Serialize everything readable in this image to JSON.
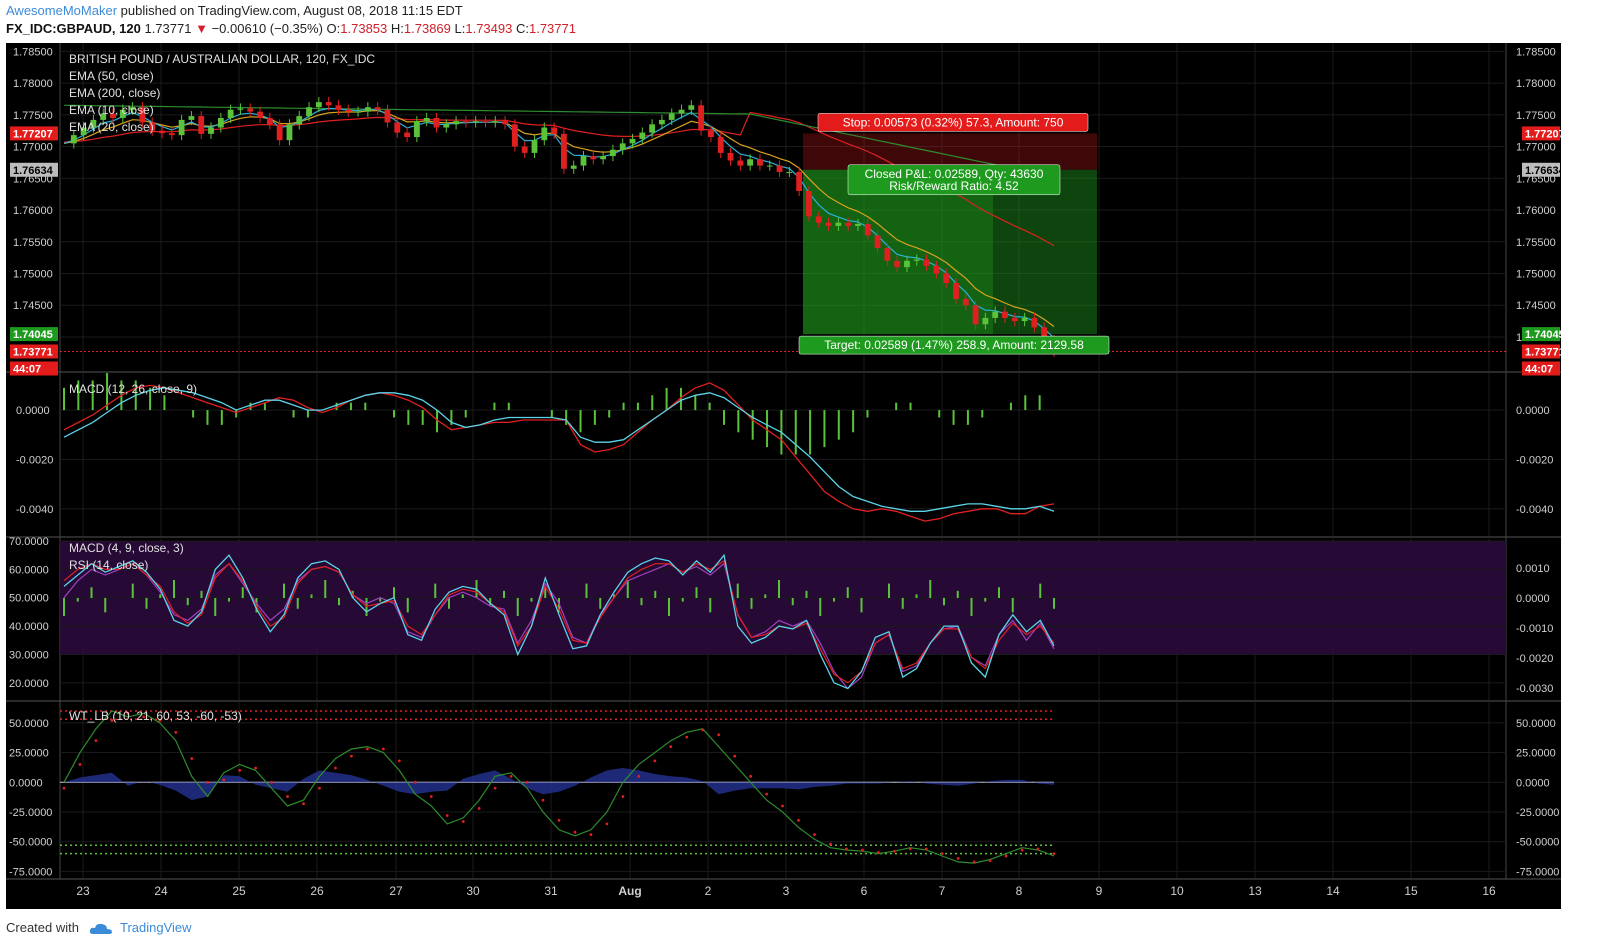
{
  "header": {
    "author": "AwesomeMoMaker",
    "published_text": "published on TradingView.com, August 08, 2018 11:15 EDT",
    "symbol": "FX_IDC:GBPAUD, 120",
    "last": "1.73771",
    "arrow": "▼",
    "change": "−0.00610 (−0.35%)",
    "open_label": "O:",
    "open": "1.73853",
    "high_label": "H:",
    "high": "1.73869",
    "low_label": "L:",
    "low": "1.73493",
    "close_label": "C:",
    "close": "1.73771"
  },
  "footer": {
    "created_with": "Created with",
    "brand": "TradingView"
  },
  "colors": {
    "up": "#5ac33a",
    "down": "#e02020",
    "bg": "#000000",
    "grid": "#1a1a1a",
    "ema10": "#2ab0d8",
    "ema20": "#d9a21e",
    "ema50": "#2e8b2e",
    "ema200": "#e02020",
    "macd": "#5bd3e8",
    "signal": "#e02020",
    "rsi": "#a040c0",
    "target": "#1e9a1e",
    "stop": "#e31b1b"
  },
  "chart_data": [
    {
      "type": "candlestick",
      "title": "BRITISH POUND / AUSTRALIAN DOLLAR, 120, FX_IDC",
      "legend": [
        "EMA (50, close)",
        "EMA (200, close)",
        "EMA (10, close)",
        "EMA (20, close)"
      ],
      "ylim": [
        1.737,
        1.786
      ],
      "yticks": [
        1.785,
        1.78,
        1.775,
        1.77,
        1.765,
        1.76,
        1.755,
        1.75,
        1.745,
        1.74
      ],
      "ytick_labels": [
        "1.78500",
        "1.78000",
        "1.77500",
        "1.77000",
        "1.76500",
        "1.76000",
        "1.75500",
        "1.75000",
        "1.74500",
        "1.74000"
      ],
      "x_categories": [
        "23",
        "24",
        "25",
        "26",
        "27",
        "30",
        "31",
        "Aug",
        "2",
        "3",
        "6",
        "7",
        "8",
        "9",
        "10",
        "13",
        "14",
        "15",
        "16"
      ],
      "closes": [
        1.7705,
        1.7718,
        1.773,
        1.7742,
        1.7752,
        1.7745,
        1.7758,
        1.7762,
        1.7738,
        1.7725,
        1.7721,
        1.7718,
        1.7742,
        1.7748,
        1.772,
        1.773,
        1.7745,
        1.7758,
        1.776,
        1.7755,
        1.7745,
        1.7735,
        1.771,
        1.7735,
        1.7748,
        1.7762,
        1.777,
        1.7765,
        1.7758,
        1.7755,
        1.7755,
        1.7762,
        1.7758,
        1.7738,
        1.7722,
        1.7715,
        1.774,
        1.7745,
        1.773,
        1.7735,
        1.774,
        1.7738,
        1.774,
        1.7738,
        1.774,
        1.7735,
        1.77,
        1.769,
        1.771,
        1.773,
        1.772,
        1.7665,
        1.767,
        1.7685,
        1.768,
        1.7685,
        1.7695,
        1.7705,
        1.7712,
        1.7722,
        1.7735,
        1.7742,
        1.7752,
        1.7758,
        1.7765,
        1.7725,
        1.7715,
        1.769,
        1.7678,
        1.767,
        1.768,
        1.767,
        1.767,
        1.766,
        1.766,
        1.763,
        1.759,
        1.758,
        1.7575,
        1.758,
        1.7575,
        1.7578,
        1.756,
        1.754,
        1.752,
        1.751,
        1.752,
        1.7522,
        1.7512,
        1.75,
        1.7485,
        1.746,
        1.745,
        1.742,
        1.743,
        1.744,
        1.743,
        1.7425,
        1.743,
        1.7415,
        1.7395,
        1.7377
      ],
      "last_price": 1.73771,
      "ema10_last": 1.74,
      "ema20_last": 1.7432,
      "ema200_last": 1.7515,
      "position": {
        "type": "short",
        "entry": 1.76634,
        "stop_price": 1.77207,
        "target_price": 1.74045,
        "stop_label": "Stop: 0.00573 (0.32%) 57.3, Amount: 750",
        "target_label": "Target: 0.02589 (1.47%) 258.9, Amount: 2129.58",
        "pnl_label": "Closed P&L: 0.02589, Qty: 43630",
        "rr_label": "Risk/Reward Ratio: 4.52"
      },
      "price_tags": {
        "stop": "1.77207",
        "entry": "1.76634",
        "target": "1.74045",
        "last": "1.73771",
        "countdown": "44:07"
      }
    },
    {
      "type": "line",
      "title": "MACD (12, 26, close, 9)",
      "ylim": [
        -0.0049,
        0.0013
      ],
      "yticks": [
        0.0,
        -0.002,
        -0.004
      ],
      "ytick_labels": [
        "0.0000",
        "-0.0020",
        "-0.0040"
      ],
      "macd": [
        -0.0011,
        -0.0008,
        -0.0005,
        -0.0001,
        0.0003,
        0.0006,
        0.0008,
        0.0009,
        0.0008,
        0.0007,
        0.0005,
        0.0003,
        0.0,
        0.0002,
        0.0004,
        0.0004,
        0.0002,
        0.0,
        0.0,
        0.0002,
        0.0004,
        0.0006,
        0.0007,
        0.0007,
        0.0006,
        0.0004,
        0.0,
        -0.0005,
        -0.0007,
        -0.0006,
        -0.0004,
        -0.0003,
        -0.0003,
        -0.0003,
        -0.0003,
        -0.0004,
        -0.0011,
        -0.0013,
        -0.0013,
        -0.0012,
        -0.0008,
        -0.0004,
        0.0,
        0.0004,
        0.0006,
        0.0007,
        0.0005,
        0.0001,
        -0.0003,
        -0.0006,
        -0.0009,
        -0.0014,
        -0.0019,
        -0.0025,
        -0.0031,
        -0.0035,
        -0.0037,
        -0.0039,
        -0.004,
        -0.0041,
        -0.0041,
        -0.004,
        -0.0039,
        -0.0038,
        -0.0038,
        -0.0039,
        -0.004,
        -0.004,
        -0.0039,
        -0.0041
      ],
      "signal": [
        -0.0008,
        -0.0005,
        -0.0002,
        0.0002,
        0.0006,
        0.0009,
        0.001,
        0.0009,
        0.0007,
        0.0005,
        0.0003,
        0.0001,
        -0.0001,
        0.0001,
        0.0003,
        0.0005,
        0.0004,
        0.0001,
        -0.0001,
        0.0001,
        0.0004,
        0.0006,
        0.0007,
        0.0006,
        0.0004,
        0.0001,
        -0.0004,
        -0.0008,
        -0.0007,
        -0.0006,
        -0.0005,
        -0.0005,
        -0.0004,
        -0.0004,
        -0.0004,
        -0.0004,
        -0.0014,
        -0.0017,
        -0.0016,
        -0.0014,
        -0.0009,
        -0.0004,
        0.0,
        0.0005,
        0.0009,
        0.0011,
        0.0008,
        0.0002,
        -0.0004,
        -0.0008,
        -0.0012,
        -0.0019,
        -0.0026,
        -0.0033,
        -0.0037,
        -0.004,
        -0.0041,
        -0.004,
        -0.0041,
        -0.0043,
        -0.0045,
        -0.0044,
        -0.0042,
        -0.0041,
        -0.004,
        -0.004,
        -0.0042,
        -0.0042,
        -0.0039,
        -0.0038
      ],
      "histogram": [
        0.0003,
        0.0004,
        0.0004,
        0.0005,
        0.0004,
        0.0004,
        0.0003,
        0.0002,
        0.0,
        -0.0001,
        -0.0002,
        -0.0002,
        -0.0001,
        0.0001,
        0.0001,
        0.0,
        -0.0001,
        -0.0001,
        0.0,
        0.0001,
        0.0001,
        0.0001,
        0.0,
        -0.0001,
        -0.0002,
        -0.0002,
        -0.0003,
        -0.0002,
        -0.0001,
        0.0,
        0.0001,
        0.0001,
        0.0,
        0.0,
        -0.0001,
        -0.0002,
        -0.0003,
        -0.0002,
        -0.0001,
        0.0001,
        0.0001,
        0.0002,
        0.0003,
        0.0003,
        0.0002,
        0.0001,
        -0.0002,
        -0.0003,
        -0.0004,
        -0.0005,
        -0.0006,
        -0.0006,
        -0.0006,
        -0.0005,
        -0.0004,
        -0.0003,
        -0.0001,
        0.0,
        0.0001,
        0.0001,
        0.0,
        -0.0001,
        -0.0002,
        -0.0002,
        -0.0001,
        0.0,
        0.0001,
        0.0002,
        0.0002,
        0.0
      ]
    },
    {
      "type": "line",
      "title": "MACD (4, 9, close, 3)",
      "legend2": "RSI (14, close)",
      "ylim_left": [
        15,
        70
      ],
      "yticks_left": [
        70,
        60,
        50,
        40,
        30,
        20
      ],
      "ytick_labels_left": [
        "70.0000",
        "60.0000",
        "50.0000",
        "40.0000",
        "30.0000",
        "20.0000"
      ],
      "ylim_right": [
        -0.0033,
        0.0019
      ],
      "yticks_right": [
        0.001,
        0.0,
        -0.001,
        -0.002,
        -0.003
      ],
      "ytick_labels_right": [
        "0.0010",
        "0.0000",
        "-0.0010",
        "-0.0020",
        "-0.0030"
      ],
      "bands": [
        70,
        30
      ],
      "rsi": [
        50,
        56,
        60,
        58,
        60,
        62,
        58,
        52,
        44,
        42,
        46,
        58,
        62,
        55,
        48,
        42,
        46,
        56,
        60,
        61,
        59,
        51,
        48,
        50,
        48,
        38,
        36,
        44,
        50,
        52,
        50,
        47,
        46,
        34,
        42,
        55,
        48,
        36,
        34,
        44,
        50,
        56,
        58,
        60,
        62,
        59,
        61,
        58,
        62,
        44,
        36,
        38,
        42,
        40,
        42,
        34,
        24,
        18,
        22,
        34,
        37,
        24,
        26,
        34,
        39,
        40,
        29,
        26,
        37,
        42,
        35,
        41,
        32
      ],
      "macd_line": [
        54,
        58,
        62,
        59,
        61,
        63,
        59,
        53,
        42,
        40,
        45,
        60,
        65,
        57,
        46,
        38,
        44,
        57,
        62,
        63,
        60,
        50,
        45,
        48,
        50,
        37,
        35,
        46,
        52,
        54,
        53,
        48,
        44,
        30,
        40,
        57,
        44,
        32,
        33,
        44,
        52,
        59,
        62,
        64,
        63,
        58,
        63,
        59,
        65,
        40,
        34,
        36,
        40,
        39,
        42,
        30,
        20,
        18,
        24,
        36,
        38,
        22,
        25,
        34,
        40,
        40,
        27,
        22,
        37,
        44,
        38,
        42,
        33
      ],
      "signal_line": [
        56,
        60,
        62,
        60,
        60,
        62,
        58,
        54,
        45,
        41,
        44,
        57,
        62,
        56,
        47,
        40,
        43,
        55,
        60,
        61,
        59,
        51,
        47,
        48,
        49,
        40,
        37,
        44,
        51,
        53,
        52,
        48,
        45,
        33,
        40,
        54,
        46,
        35,
        34,
        43,
        50,
        57,
        60,
        62,
        62,
        59,
        62,
        60,
        63,
        44,
        36,
        37,
        40,
        39,
        41,
        32,
        23,
        20,
        24,
        34,
        37,
        25,
        27,
        34,
        39,
        39,
        29,
        25,
        35,
        41,
        37,
        40,
        34
      ]
    },
    {
      "type": "line",
      "title": "WT_LB (10, 21, 60, 53, -60, -53)",
      "ylim": [
        -78,
        65
      ],
      "yticks": [
        50,
        25,
        0,
        -25,
        -50,
        -75
      ],
      "ytick_labels": [
        "50.0000",
        "25.0000",
        "0.0000",
        "-25.0000",
        "-50.0000",
        "-75.0000"
      ],
      "levels": [
        60,
        53,
        -60,
        -53
      ],
      "wt1": [
        0,
        25,
        45,
        60,
        55,
        58,
        50,
        35,
        5,
        -12,
        8,
        15,
        10,
        -5,
        -20,
        -15,
        5,
        20,
        28,
        30,
        25,
        10,
        -10,
        -20,
        -35,
        -30,
        -15,
        5,
        8,
        -5,
        -25,
        -40,
        -45,
        -40,
        -25,
        0,
        15,
        25,
        35,
        42,
        45,
        30,
        15,
        0,
        -15,
        -25,
        -38,
        -48,
        -55,
        -57,
        -58,
        -60,
        -58,
        -55,
        -57,
        -62,
        -67,
        -68,
        -65,
        -60,
        -55,
        -57,
        -62
      ],
      "wt2": [
        -5,
        15,
        35,
        52,
        58,
        55,
        52,
        42,
        20,
        0,
        2,
        10,
        12,
        0,
        -12,
        -18,
        -5,
        12,
        22,
        28,
        28,
        18,
        0,
        -12,
        -28,
        -33,
        -22,
        -5,
        5,
        0,
        -15,
        -32,
        -42,
        -44,
        -35,
        -12,
        5,
        18,
        30,
        38,
        44,
        40,
        22,
        5,
        -10,
        -20,
        -32,
        -44,
        -52,
        -56,
        -57,
        -59,
        -58,
        -56,
        -56,
        -60,
        -64,
        -67,
        -66,
        -62,
        -57,
        -56,
        -60
      ],
      "diff": [
        0,
        4,
        6,
        8,
        -3,
        1,
        -2,
        -7,
        -15,
        -12,
        6,
        5,
        -2,
        -5,
        -8,
        3,
        10,
        8,
        6,
        2,
        -3,
        -8,
        -10,
        -8,
        -7,
        3,
        7,
        10,
        3,
        -5,
        -10,
        -8,
        -3,
        4,
        10,
        12,
        10,
        7,
        5,
        4,
        1,
        -10,
        -7,
        -5,
        -5,
        -5,
        -6,
        -4,
        -3,
        -1,
        -1,
        -1,
        0,
        1,
        -1,
        -2,
        -3,
        -1,
        1,
        2,
        2,
        -1,
        -2
      ]
    }
  ]
}
